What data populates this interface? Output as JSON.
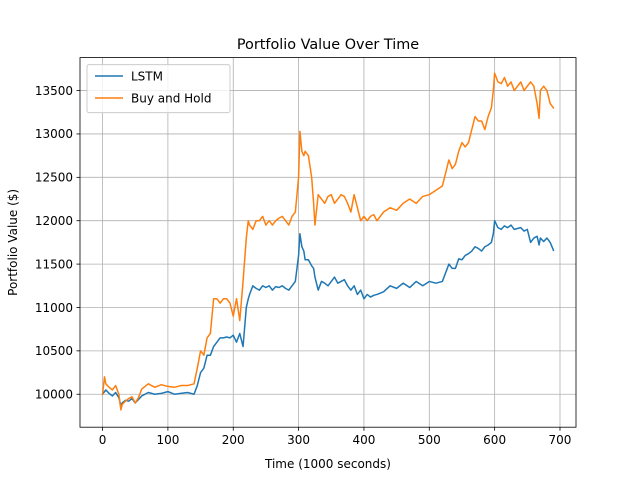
{
  "chart_data": {
    "type": "line",
    "title": "Portfolio Value Over Time",
    "xlabel": "Time (1000 seconds)",
    "ylabel": "Portfolio Value ($)",
    "xlim": [
      -34.5,
      724.5
    ],
    "ylim": [
      9620,
      13880
    ],
    "xticks": [
      0,
      100,
      200,
      300,
      400,
      500,
      600,
      700
    ],
    "yticks": [
      10000,
      10500,
      11000,
      11500,
      12000,
      12500,
      13000,
      13500
    ],
    "grid": true,
    "legend_position": "top-left",
    "series": [
      {
        "name": "LSTM",
        "color": "#1f77b4",
        "x": [
          0,
          5,
          10,
          15,
          20,
          25,
          28,
          30,
          35,
          40,
          45,
          50,
          55,
          60,
          70,
          80,
          90,
          100,
          110,
          120,
          130,
          140,
          145,
          150,
          155,
          160,
          165,
          170,
          175,
          180,
          185,
          190,
          195,
          200,
          205,
          210,
          215,
          220,
          223,
          225,
          230,
          235,
          240,
          245,
          250,
          255,
          260,
          265,
          270,
          275,
          280,
          285,
          290,
          295,
          300,
          302,
          305,
          308,
          310,
          315,
          320,
          323,
          325,
          330,
          335,
          340,
          345,
          350,
          355,
          360,
          365,
          370,
          375,
          380,
          385,
          390,
          395,
          400,
          405,
          410,
          415,
          420,
          430,
          440,
          450,
          460,
          470,
          480,
          490,
          500,
          510,
          520,
          530,
          535,
          540,
          545,
          550,
          555,
          560,
          565,
          570,
          575,
          580,
          585,
          590,
          595,
          598,
          600,
          605,
          610,
          615,
          620,
          625,
          630,
          635,
          640,
          645,
          650,
          655,
          660,
          665,
          668,
          670,
          675,
          680,
          685,
          690
        ],
        "values": [
          10000,
          10050,
          10010,
          9980,
          10020,
          9960,
          9870,
          9900,
          9930,
          9920,
          9950,
          9900,
          9940,
          9980,
          10020,
          10000,
          10010,
          10030,
          10000,
          10010,
          10020,
          10000,
          10100,
          10250,
          10300,
          10450,
          10450,
          10550,
          10600,
          10650,
          10650,
          10660,
          10650,
          10680,
          10600,
          10700,
          10550,
          11000,
          11100,
          11150,
          11250,
          11220,
          11200,
          11250,
          11230,
          11250,
          11200,
          11240,
          11230,
          11250,
          11220,
          11200,
          11250,
          11300,
          11600,
          11850,
          11700,
          11650,
          11550,
          11550,
          11480,
          11450,
          11350,
          11200,
          11300,
          11280,
          11250,
          11300,
          11350,
          11280,
          11300,
          11320,
          11250,
          11200,
          11250,
          11150,
          11200,
          11100,
          11150,
          11120,
          11140,
          11150,
          11180,
          11250,
          11220,
          11280,
          11230,
          11300,
          11250,
          11300,
          11280,
          11300,
          11500,
          11450,
          11450,
          11560,
          11550,
          11600,
          11620,
          11650,
          11700,
          11680,
          11650,
          11700,
          11720,
          11750,
          11850,
          12000,
          11920,
          11900,
          11940,
          11920,
          11950,
          11900,
          11910,
          11920,
          11880,
          11900,
          11750,
          11800,
          11820,
          11720,
          11800,
          11760,
          11800,
          11750,
          11660
        ]
      },
      {
        "name": "Buy and Hold",
        "color": "#ff7f0e",
        "x": [
          0,
          3,
          5,
          10,
          15,
          20,
          25,
          28,
          30,
          35,
          40,
          45,
          50,
          55,
          60,
          70,
          80,
          90,
          100,
          110,
          120,
          130,
          140,
          145,
          150,
          155,
          160,
          165,
          170,
          175,
          180,
          185,
          190,
          195,
          200,
          205,
          210,
          215,
          220,
          223,
          225,
          230,
          235,
          240,
          245,
          250,
          255,
          260,
          265,
          270,
          275,
          280,
          285,
          290,
          295,
          300,
          302,
          305,
          308,
          310,
          315,
          320,
          323,
          325,
          330,
          335,
          340,
          345,
          350,
          355,
          360,
          365,
          370,
          375,
          380,
          385,
          390,
          395,
          400,
          405,
          410,
          415,
          420,
          430,
          440,
          450,
          460,
          470,
          480,
          490,
          500,
          510,
          520,
          530,
          535,
          540,
          545,
          550,
          555,
          560,
          565,
          570,
          575,
          580,
          585,
          590,
          595,
          598,
          600,
          605,
          610,
          615,
          620,
          625,
          630,
          635,
          640,
          645,
          650,
          655,
          660,
          665,
          668,
          670,
          675,
          680,
          685,
          690
        ],
        "values": [
          10000,
          10200,
          10120,
          10080,
          10050,
          10100,
          10000,
          9820,
          9880,
          9920,
          9950,
          9970,
          9900,
          9960,
          10060,
          10120,
          10080,
          10110,
          10090,
          10080,
          10100,
          10100,
          10120,
          10300,
          10500,
          10450,
          10650,
          10700,
          11100,
          11100,
          11050,
          11100,
          11100,
          11050,
          10900,
          11100,
          10850,
          11300,
          11800,
          12000,
          11950,
          11900,
          12000,
          12000,
          12050,
          11950,
          12000,
          11950,
          12000,
          12030,
          12050,
          12000,
          11950,
          12050,
          12100,
          12500,
          13030,
          12800,
          12750,
          12800,
          12750,
          12500,
          12200,
          11950,
          12300,
          12250,
          12200,
          12280,
          12300,
          12200,
          12250,
          12300,
          12280,
          12200,
          12100,
          12300,
          12150,
          12000,
          12050,
          12000,
          12050,
          12070,
          12000,
          12100,
          12150,
          12120,
          12200,
          12250,
          12200,
          12280,
          12300,
          12350,
          12400,
          12700,
          12600,
          12650,
          12800,
          12900,
          12850,
          12900,
          13050,
          13200,
          13150,
          13150,
          13050,
          13200,
          13300,
          13500,
          13700,
          13600,
          13580,
          13650,
          13550,
          13600,
          13500,
          13550,
          13600,
          13500,
          13550,
          13600,
          13550,
          13350,
          13180,
          13500,
          13550,
          13500,
          13350,
          13300
        ]
      }
    ]
  }
}
